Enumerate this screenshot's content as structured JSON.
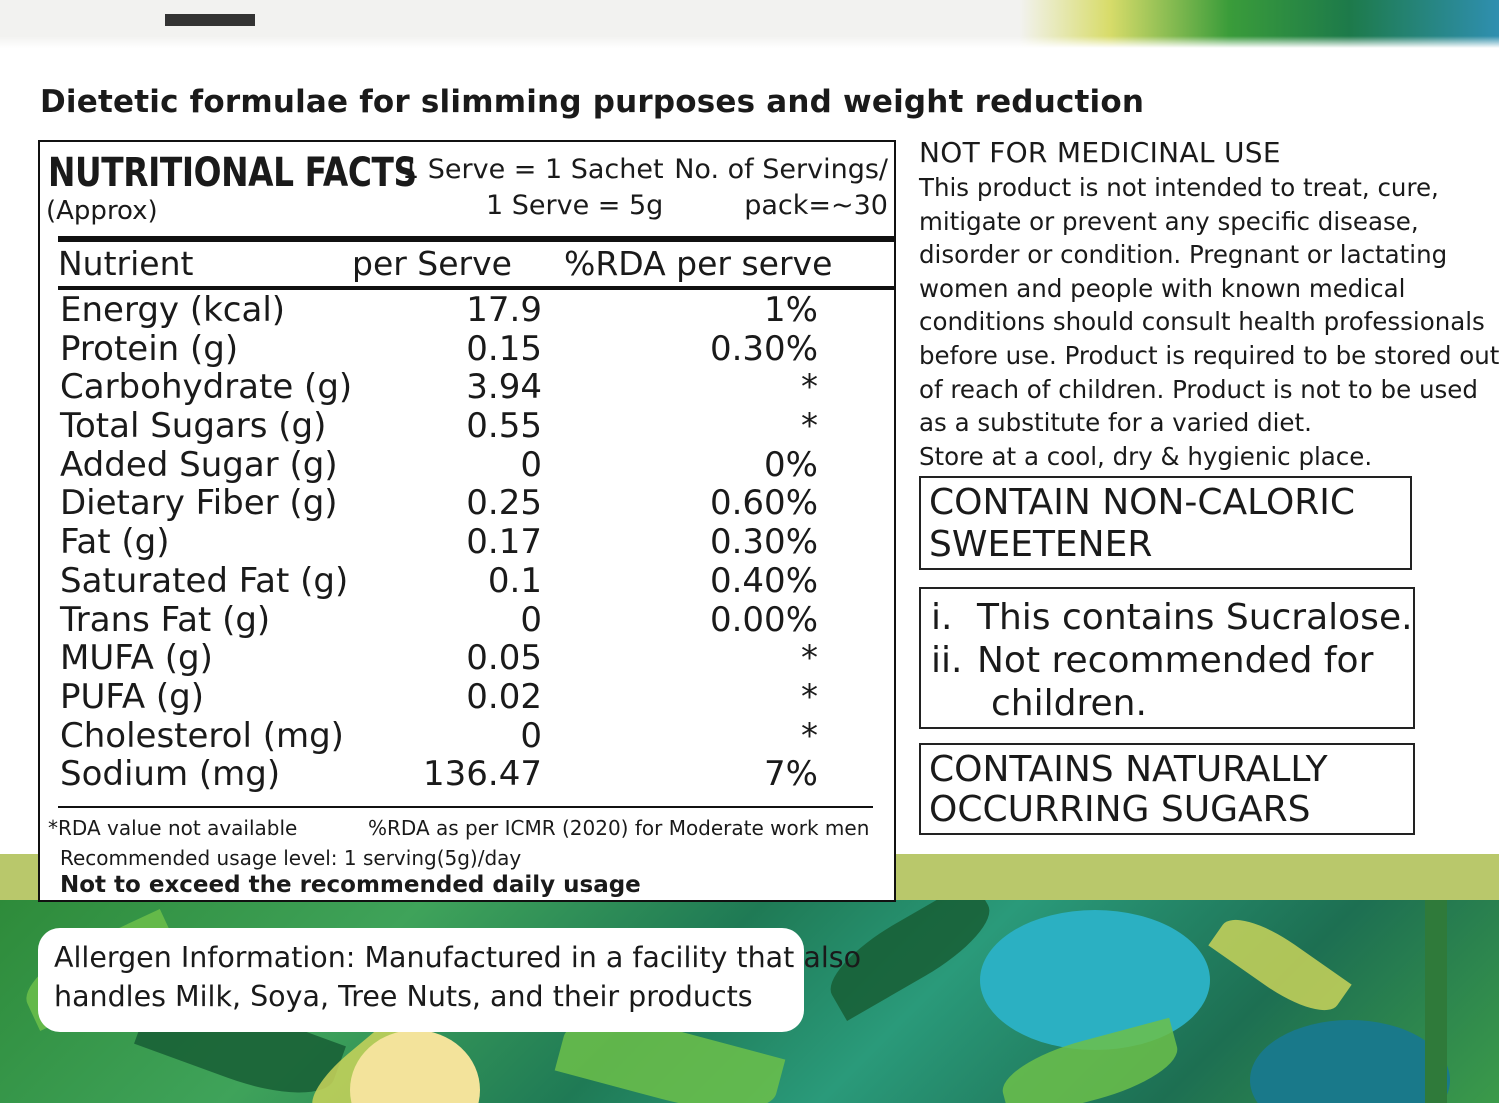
{
  "heading": "Dietetic formulae for slimming purposes and weight reduction",
  "nutrition": {
    "title": "NUTRITIONAL FACTS",
    "approx": "(Approx)",
    "serve_line1": "1 Serve = 1 Sachet",
    "serve_line2": "1 Serve = 5g",
    "servings_line1": "No. of Servings/",
    "servings_line2": "pack=~30",
    "headers": {
      "nutrient": "Nutrient",
      "per_serve": "per Serve",
      "rda": "%RDA per serve"
    },
    "rows": [
      {
        "name": "Energy (kcal)",
        "value": "17.9",
        "rda": "1%"
      },
      {
        "name": "Protein (g)",
        "value": "0.15",
        "rda": "0.30%"
      },
      {
        "name": "Carbohydrate (g)",
        "value": "3.94",
        "rda": "*"
      },
      {
        "name": "Total Sugars (g)",
        "value": "0.55",
        "rda": "*"
      },
      {
        "name": "Added Sugar (g)",
        "value": "0",
        "rda": "0%"
      },
      {
        "name": "Dietary Fiber (g)",
        "value": "0.25",
        "rda": "0.60%"
      },
      {
        "name": "Fat (g)",
        "value": "0.17",
        "rda": "0.30%"
      },
      {
        "name": "Saturated Fat (g)",
        "value": "0.1",
        "rda": "0.40%"
      },
      {
        "name": "Trans Fat (g)",
        "value": "0",
        "rda": "0.00%"
      },
      {
        "name": "MUFA (g)",
        "value": "0.05",
        "rda": "*"
      },
      {
        "name": "PUFA (g)",
        "value": "0.02",
        "rda": "*"
      },
      {
        "name": "Cholesterol (mg)",
        "value": "0",
        "rda": "*"
      },
      {
        "name": "Sodium (mg)",
        "value": "136.47",
        "rda": "7%"
      }
    ],
    "footnote_rda": "*RDA value not available",
    "footnote_icmr": "%RDA as per ICMR (2020) for Moderate work men",
    "usage": "Recommended  usage level: 1 serving(5g)/day",
    "not_exceed": "Not to exceed the recommended daily usage"
  },
  "warning": {
    "title": "NOT FOR MEDICINAL USE",
    "lines": [
      "This product is not intended to  treat, cure,",
      "mitigate or prevent any specific disease,",
      "disorder or condition. Pregnant or lactating",
      "women and people with known medical",
      "conditions should consult health professionals",
      "before use. Product is required to be stored out",
      "of reach of children. Product is not to be used",
      "as a substitute for a varied diet.",
      "Store at a cool, dry & hygienic place."
    ]
  },
  "box_sweetener": {
    "line1": "CONTAIN NON-CALORIC",
    "line2": "SWEETENER"
  },
  "box_sucralose": {
    "i_marker": "i.",
    "i_text": "This contains Sucralose.",
    "ii_marker": "ii.",
    "ii_text1": "Not recommended for",
    "ii_text2": "children."
  },
  "box_sugars": {
    "line1": "CONTAINS NATURALLY",
    "line2": "OCCURRING SUGARS"
  },
  "allergen": {
    "line1": "Allergen Information: Manufactured in a facility that also",
    "line2": "handles Milk, Soya, Tree Nuts, and their products"
  },
  "colors": {
    "band": "#b9c86b",
    "foliage_green": "#2e8b3a",
    "teal": "#1b8aa0"
  }
}
